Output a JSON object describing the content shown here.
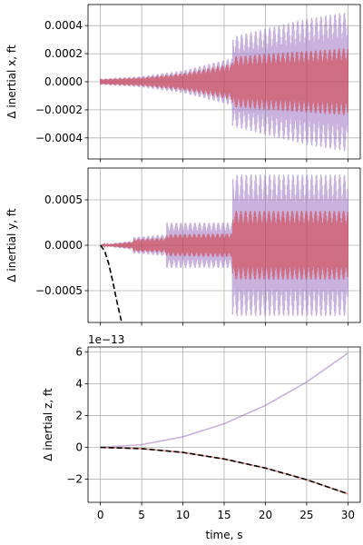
{
  "chart_data": [
    {
      "type": "line",
      "ylabel": "Δ inertial x, ft",
      "xlim": [
        -1.5,
        31.5
      ],
      "ylim": [
        -0.00055,
        0.00055
      ],
      "yticks": [
        -0.0004,
        -0.0002,
        0.0,
        0.0002,
        0.0004
      ],
      "ytick_labels": [
        "−0.0004",
        "−0.0002",
        "0.0000",
        "0.0002",
        "0.0004"
      ],
      "xticks": [
        0,
        5,
        10,
        15,
        20,
        25,
        30
      ],
      "grid": true,
      "series": [
        {
          "color": "#9467bd",
          "style": "oscillation",
          "envelope_x": [
            0,
            5,
            10,
            16,
            16.01,
            20,
            25,
            30
          ],
          "envelope_amp": [
            2e-05,
            4e-05,
            8e-05,
            0.00017,
            0.00032,
            0.00038,
            0.00045,
            0.0005
          ],
          "center": 0
        },
        {
          "color": "#d62728",
          "style": "oscillation",
          "envelope_x": [
            0,
            5,
            10,
            16,
            16.01,
            20,
            25,
            30
          ],
          "envelope_amp": [
            2e-05,
            3e-05,
            6e-05,
            0.00013,
            0.00018,
            0.0002,
            0.00022,
            0.00024
          ],
          "center": 0
        }
      ]
    },
    {
      "type": "line",
      "ylabel": "Δ inertial y, ft",
      "xlim": [
        -1.5,
        31.5
      ],
      "ylim": [
        -0.00085,
        0.00085
      ],
      "yticks": [
        -0.0005,
        0.0,
        0.0005
      ],
      "ytick_labels": [
        "−0.0005",
        "0.0000",
        "0.0005"
      ],
      "xticks": [
        0,
        5,
        10,
        15,
        20,
        25,
        30
      ],
      "grid": true,
      "series": [
        {
          "color": "#9467bd",
          "style": "oscillation",
          "envelope_x": [
            0,
            2,
            4,
            4.01,
            8,
            8.01,
            16,
            16.01,
            30
          ],
          "envelope_amp": [
            0.0,
            3e-05,
            5e-05,
            9e-05,
            0.00012,
            0.00025,
            0.00025,
            0.00078,
            0.00078
          ],
          "center": 0
        },
        {
          "color": "#d62728",
          "style": "oscillation",
          "envelope_x": [
            0,
            2,
            4,
            4.01,
            8,
            8.01,
            16,
            16.01,
            30
          ],
          "envelope_amp": [
            0.0,
            2e-05,
            4e-05,
            7e-05,
            8e-05,
            0.00012,
            0.00013,
            0.00038,
            0.00038
          ],
          "center": 0
        },
        {
          "color": "#000000",
          "style": "dashed",
          "x": [
            0,
            0.5,
            1.0,
            1.5,
            2.0,
            2.5,
            3.0
          ],
          "y": [
            0.0,
            -6e-05,
            -0.0002,
            -0.0004,
            -0.00062,
            -0.00082,
            -0.001
          ]
        }
      ]
    },
    {
      "type": "line",
      "ylabel": "Δ inertial z, ft",
      "xlabel": "time, s",
      "offset_text": "1e−13",
      "xlim": [
        -1.5,
        31.5
      ],
      "ylim": [
        -3.45,
        6.3
      ],
      "yticks": [
        -2,
        0,
        2,
        4,
        6
      ],
      "ytick_labels": [
        "−2",
        "0",
        "2",
        "4",
        "6"
      ],
      "xticks": [
        0,
        5,
        10,
        15,
        20,
        25,
        30
      ],
      "xtick_labels": [
        "0",
        "5",
        "10",
        "15",
        "20",
        "25",
        "30"
      ],
      "grid": true,
      "series": [
        {
          "color": "#9467bd",
          "style": "smooth",
          "x": [
            0,
            5,
            10,
            15,
            20,
            25,
            30
          ],
          "y": [
            0.0,
            0.17,
            0.66,
            1.48,
            2.63,
            4.1,
            5.92
          ]
        },
        {
          "color": "#d62728",
          "style": "smooth",
          "x": [
            0,
            5,
            10,
            15,
            20,
            25,
            30
          ],
          "y": [
            0.0,
            -0.08,
            -0.32,
            -0.73,
            -1.3,
            -2.03,
            -2.92
          ]
        },
        {
          "color": "#000000",
          "style": "dashed",
          "x": [
            0,
            5,
            10,
            15,
            20,
            25,
            30
          ],
          "y": [
            0.0,
            -0.08,
            -0.32,
            -0.73,
            -1.3,
            -2.03,
            -2.92
          ]
        }
      ]
    }
  ]
}
